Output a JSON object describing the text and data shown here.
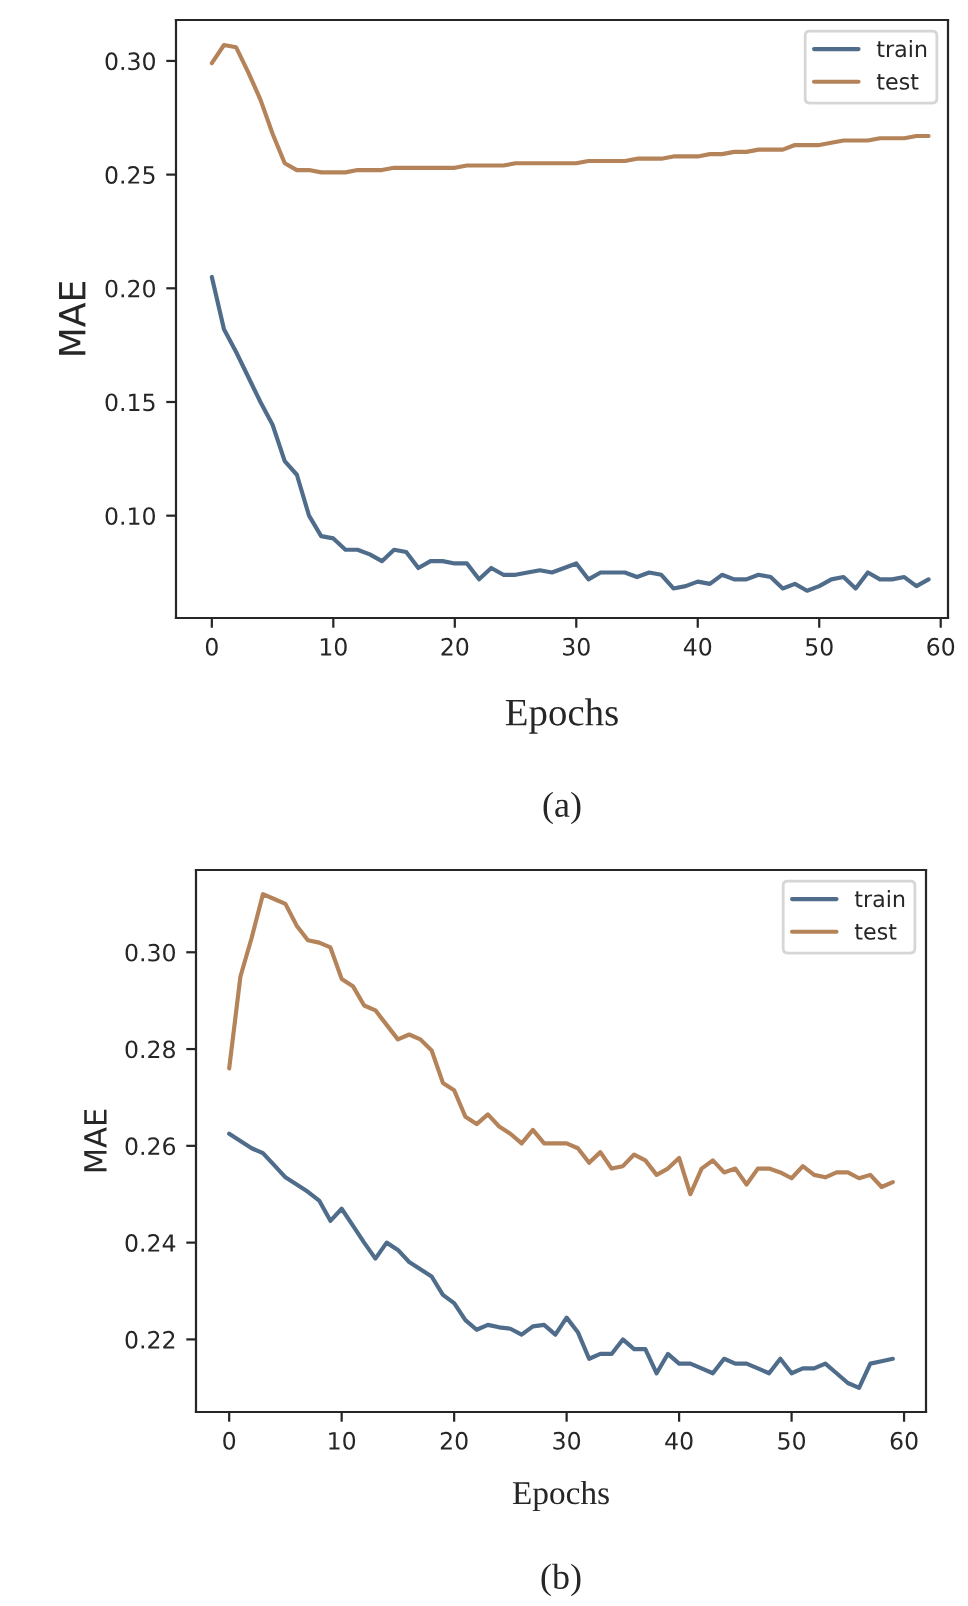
{
  "chart_data": [
    {
      "type": "line",
      "xlabel": "Epochs",
      "ylabel": "MAE",
      "annotations": [
        "(a)"
      ],
      "legend": "top right",
      "grid": false,
      "x": [
        0,
        1,
        2,
        3,
        4,
        5,
        6,
        7,
        8,
        9,
        10,
        11,
        12,
        13,
        14,
        15,
        16,
        17,
        18,
        19,
        20,
        21,
        22,
        23,
        24,
        25,
        26,
        27,
        28,
        29,
        30,
        31,
        32,
        33,
        34,
        35,
        36,
        37,
        38,
        39,
        40,
        41,
        42,
        43,
        44,
        45,
        46,
        47,
        48,
        49,
        50,
        51,
        52,
        53,
        54,
        55,
        56,
        57,
        58,
        59
      ],
      "xlim": [
        -2.95,
        60.6
      ],
      "xticks": [
        0,
        10,
        20,
        30,
        40,
        50,
        60
      ],
      "ylim": [
        0.055,
        0.318
      ],
      "yticks": [
        {
          "value": 0.1,
          "label": "0.10"
        },
        {
          "value": 0.15,
          "label": "0.15"
        },
        {
          "value": 0.2,
          "label": "0.20"
        },
        {
          "value": 0.25,
          "label": "0.25"
        },
        {
          "value": 0.3,
          "label": "0.30"
        }
      ],
      "series": [
        {
          "name": "train",
          "color": "#4f6d8a",
          "values": [
            0.205,
            0.182,
            0.172,
            0.161,
            0.15,
            0.14,
            0.124,
            0.118,
            0.1,
            0.091,
            0.09,
            0.085,
            0.085,
            0.083,
            0.08,
            0.085,
            0.084,
            0.077,
            0.08,
            0.08,
            0.079,
            0.079,
            0.072,
            0.077,
            0.074,
            0.074,
            0.075,
            0.076,
            0.075,
            0.077,
            0.079,
            0.072,
            0.075,
            0.075,
            0.075,
            0.073,
            0.075,
            0.074,
            0.068,
            0.069,
            0.071,
            0.07,
            0.074,
            0.072,
            0.072,
            0.074,
            0.073,
            0.068,
            0.07,
            0.067,
            0.069,
            0.072,
            0.073,
            0.068,
            0.075,
            0.072,
            0.072,
            0.073,
            0.069,
            0.072
          ]
        },
        {
          "name": "test",
          "color": "#b5835a",
          "values": [
            0.299,
            0.307,
            0.306,
            0.295,
            0.283,
            0.268,
            0.255,
            0.252,
            0.252,
            0.251,
            0.251,
            0.251,
            0.252,
            0.252,
            0.252,
            0.253,
            0.253,
            0.253,
            0.253,
            0.253,
            0.253,
            0.254,
            0.254,
            0.254,
            0.254,
            0.255,
            0.255,
            0.255,
            0.255,
            0.255,
            0.255,
            0.256,
            0.256,
            0.256,
            0.256,
            0.257,
            0.257,
            0.257,
            0.258,
            0.258,
            0.258,
            0.259,
            0.259,
            0.26,
            0.26,
            0.261,
            0.261,
            0.261,
            0.263,
            0.263,
            0.263,
            0.264,
            0.265,
            0.265,
            0.265,
            0.266,
            0.266,
            0.266,
            0.267,
            0.267
          ]
        }
      ]
    },
    {
      "type": "line",
      "xlabel": "Epochs",
      "ylabel": "MAE",
      "annotations": [
        "(b)"
      ],
      "legend": "top right",
      "grid": false,
      "x": [
        0,
        1,
        2,
        3,
        4,
        5,
        6,
        7,
        8,
        9,
        10,
        11,
        12,
        13,
        14,
        15,
        16,
        17,
        18,
        19,
        20,
        21,
        22,
        23,
        24,
        25,
        26,
        27,
        28,
        29,
        30,
        31,
        32,
        33,
        34,
        35,
        36,
        37,
        38,
        39,
        40,
        41,
        42,
        43,
        44,
        45,
        46,
        47,
        48,
        49,
        50,
        51,
        52,
        53,
        54,
        55,
        56,
        57,
        58,
        59
      ],
      "xlim": [
        -2.95,
        61.95
      ],
      "xticks": [
        0,
        10,
        20,
        30,
        40,
        50,
        60
      ],
      "ylim": [
        0.205,
        0.317
      ],
      "yticks": [
        {
          "value": 0.22,
          "label": "0.22"
        },
        {
          "value": 0.24,
          "label": "0.24"
        },
        {
          "value": 0.26,
          "label": "0.26"
        },
        {
          "value": 0.28,
          "label": "0.28"
        },
        {
          "value": 0.3,
          "label": "0.30"
        }
      ],
      "series": [
        {
          "name": "train",
          "color": "#4f6d8a",
          "values": [
            0.2625,
            0.261,
            0.2595,
            0.2585,
            0.256,
            0.2535,
            0.252,
            0.2505,
            0.2487,
            0.2445,
            0.247,
            0.2435,
            0.24,
            0.2367,
            0.24,
            0.2385,
            0.236,
            0.2345,
            0.233,
            0.2292,
            0.2275,
            0.224,
            0.222,
            0.223,
            0.2225,
            0.2222,
            0.221,
            0.2227,
            0.223,
            0.221,
            0.2245,
            0.2215,
            0.216,
            0.217,
            0.217,
            0.22,
            0.218,
            0.218,
            0.213,
            0.217,
            0.215,
            0.215,
            0.214,
            0.213,
            0.216,
            0.215,
            0.215,
            0.214,
            0.213,
            0.216,
            0.213,
            0.214,
            0.214,
            0.215,
            0.213,
            0.211,
            0.21,
            0.215,
            0.2155,
            0.216
          ]
        },
        {
          "name": "test",
          "color": "#b5835a",
          "values": [
            0.276,
            0.295,
            0.303,
            0.312,
            0.311,
            0.31,
            0.3055,
            0.3025,
            0.302,
            0.301,
            0.2945,
            0.293,
            0.289,
            0.288,
            0.285,
            0.282,
            0.283,
            0.282,
            0.2797,
            0.273,
            0.2715,
            0.266,
            0.2645,
            0.2665,
            0.264,
            0.2625,
            0.2605,
            0.2633,
            0.2605,
            0.2605,
            0.2605,
            0.2595,
            0.2565,
            0.2587,
            0.2553,
            0.2558,
            0.2582,
            0.257,
            0.254,
            0.2553,
            0.2575,
            0.25,
            0.2553,
            0.257,
            0.2545,
            0.2553,
            0.252,
            0.2553,
            0.2553,
            0.2545,
            0.2533,
            0.2558,
            0.254,
            0.2535,
            0.2545,
            0.2545,
            0.2533,
            0.254,
            0.2515,
            0.2525
          ]
        }
      ]
    }
  ]
}
